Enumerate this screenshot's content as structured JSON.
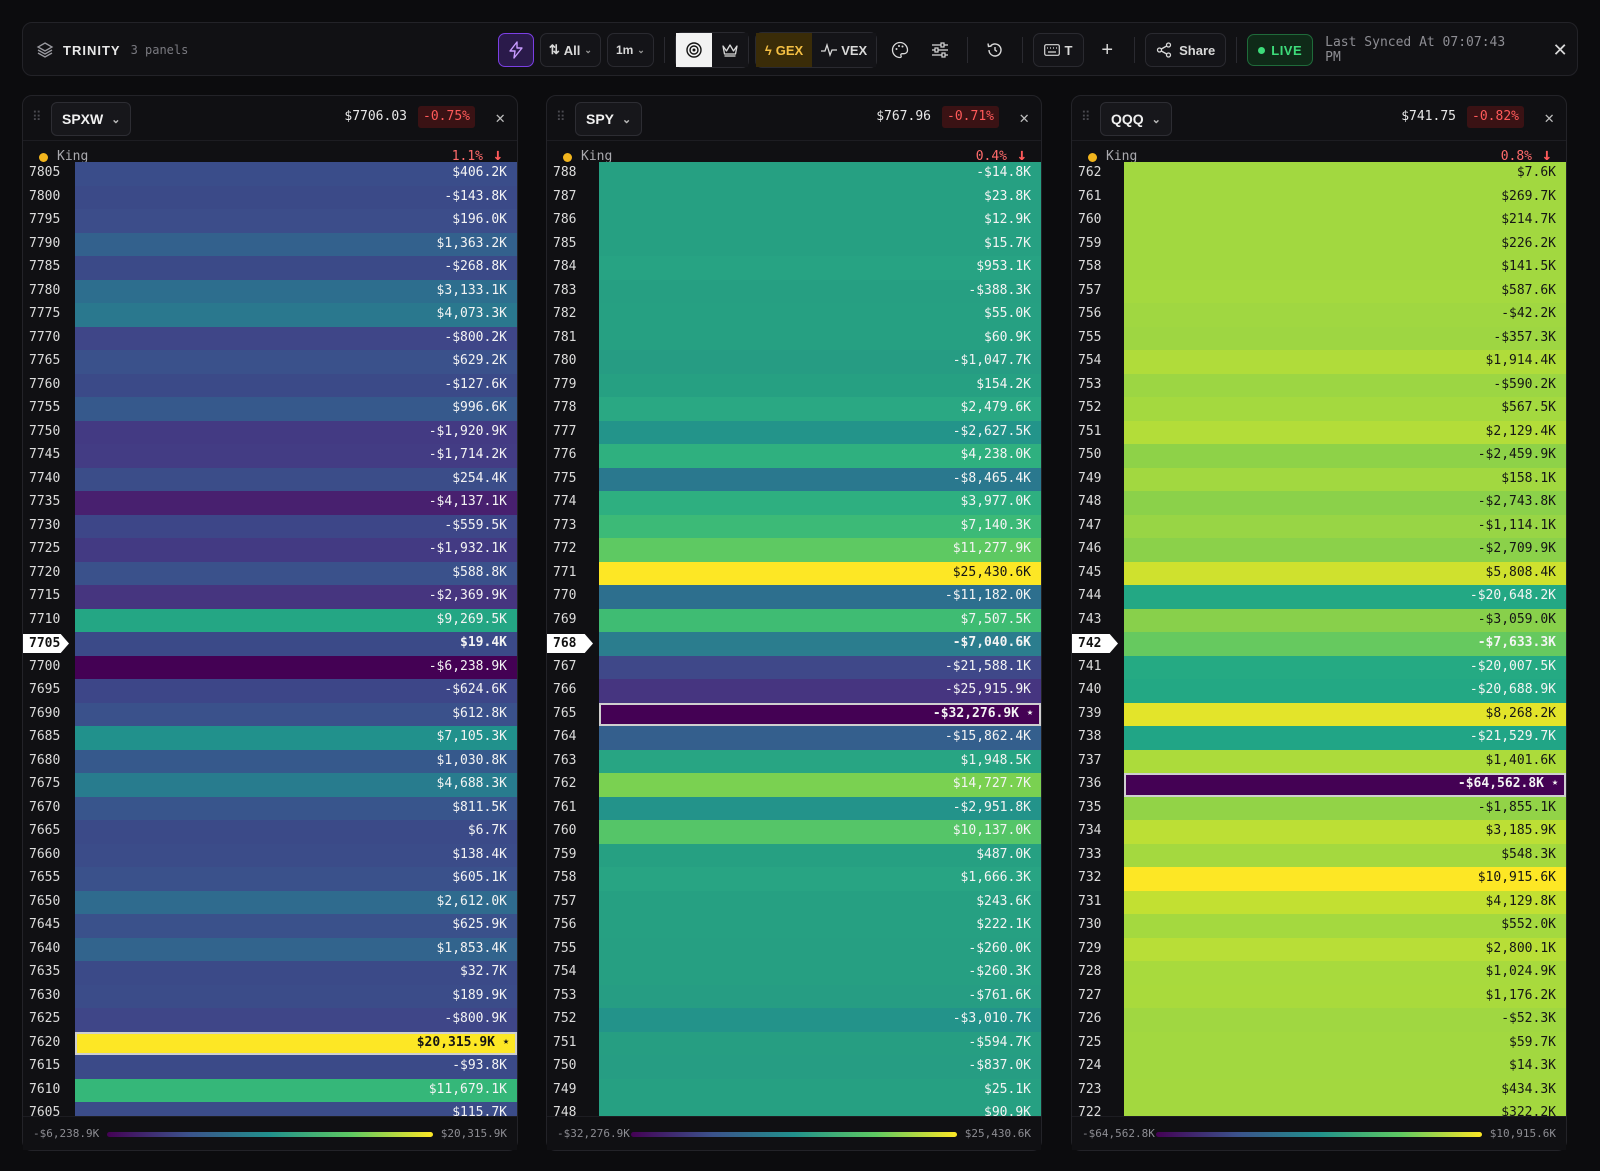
{
  "toolbar": {
    "title": "TRINITY",
    "subtitle": "3 panels",
    "sort_label": "All",
    "interval_label": "1m",
    "gex_label": "GEX",
    "vex_label": "VEX",
    "text_btn_label": "T",
    "share_label": "Share",
    "live_label": "LIVE",
    "synced_text": "Last Synced At 07:07:43 PM"
  },
  "panels": [
    {
      "symbol": "SPXW",
      "price": "$7706.03",
      "change": "-0.75%",
      "king_label": "King",
      "king_pct": "1.1%",
      "legend_min": "-$6,238.9K",
      "legend_max": "$20,315.9K",
      "rows": [
        {
          "strike": "7805",
          "value": "$406.2K",
          "color": "#3a4d8a"
        },
        {
          "strike": "7800",
          "value": "-$143.8K",
          "color": "#3b4a88"
        },
        {
          "strike": "7795",
          "value": "$196.0K",
          "color": "#3c4d8a"
        },
        {
          "strike": "7790",
          "value": "$1,363.2K",
          "color": "#33618d"
        },
        {
          "strike": "7785",
          "value": "-$268.8K",
          "color": "#3b4a88"
        },
        {
          "strike": "7780",
          "value": "$3,133.1K",
          "color": "#2d6e8e"
        },
        {
          "strike": "7775",
          "value": "$4,073.3K",
          "color": "#2a788e"
        },
        {
          "strike": "7770",
          "value": "-$800.2K",
          "color": "#3f4688"
        },
        {
          "strike": "7765",
          "value": "$629.2K",
          "color": "#3a518b"
        },
        {
          "strike": "7760",
          "value": "-$127.6K",
          "color": "#3b4a88"
        },
        {
          "strike": "7755",
          "value": "$996.6K",
          "color": "#36598c"
        },
        {
          "strike": "7750",
          "value": "-$1,920.9K",
          "color": "#433a83"
        },
        {
          "strike": "7745",
          "value": "-$1,714.2K",
          "color": "#433c84"
        },
        {
          "strike": "7740",
          "value": "$254.4K",
          "color": "#3b4d89"
        },
        {
          "strike": "7735",
          "value": "-$4,137.1K",
          "color": "#48206f"
        },
        {
          "strike": "7730",
          "value": "-$559.5K",
          "color": "#3d4688"
        },
        {
          "strike": "7725",
          "value": "-$1,932.1K",
          "color": "#433a83"
        },
        {
          "strike": "7720",
          "value": "$588.8K",
          "color": "#3a518b"
        },
        {
          "strike": "7715",
          "value": "-$2,369.9K",
          "color": "#46357f"
        },
        {
          "strike": "7710",
          "value": "$9,269.5K",
          "color": "#24a684"
        },
        {
          "strike": "7705",
          "value": "$19.4K",
          "color": "#3b4a88",
          "current": true
        },
        {
          "strike": "7700",
          "value": "-$6,238.9K",
          "color": "#440154"
        },
        {
          "strike": "7695",
          "value": "-$624.6K",
          "color": "#3d4688"
        },
        {
          "strike": "7690",
          "value": "$612.8K",
          "color": "#3a518b"
        },
        {
          "strike": "7685",
          "value": "$7,105.3K",
          "color": "#21918c"
        },
        {
          "strike": "7680",
          "value": "$1,030.8K",
          "color": "#36598c"
        },
        {
          "strike": "7675",
          "value": "$4,688.3K",
          "color": "#287c8e"
        },
        {
          "strike": "7670",
          "value": "$811.5K",
          "color": "#38558c"
        },
        {
          "strike": "7665",
          "value": "$6.7K",
          "color": "#3b4a88"
        },
        {
          "strike": "7660",
          "value": "$138.4K",
          "color": "#3b4c89"
        },
        {
          "strike": "7655",
          "value": "$605.1K",
          "color": "#3a518b"
        },
        {
          "strike": "7650",
          "value": "$2,612.0K",
          "color": "#2f6b8e"
        },
        {
          "strike": "7645",
          "value": "$625.9K",
          "color": "#3a518b"
        },
        {
          "strike": "7640",
          "value": "$1,853.4K",
          "color": "#32648d"
        },
        {
          "strike": "7635",
          "value": "$32.7K",
          "color": "#3b4a88"
        },
        {
          "strike": "7630",
          "value": "$189.9K",
          "color": "#3b4c89"
        },
        {
          "strike": "7625",
          "value": "-$800.9K",
          "color": "#3f4688"
        },
        {
          "strike": "7620",
          "value": "$20,315.9K",
          "color": "#fde725",
          "king": true
        },
        {
          "strike": "7615",
          "value": "-$93.8K",
          "color": "#3b4a88"
        },
        {
          "strike": "7610",
          "value": "$11,679.1K",
          "color": "#35b779"
        },
        {
          "strike": "7605",
          "value": "$115.7K",
          "color": "#3b4c89"
        }
      ]
    },
    {
      "symbol": "SPY",
      "price": "$767.96",
      "change": "-0.71%",
      "king_label": "King",
      "king_pct": "0.4%",
      "legend_min": "-$32,276.9K",
      "legend_max": "$25,430.6K",
      "rows": [
        {
          "strike": "788",
          "value": "-$14.8K",
          "color": "#26a082"
        },
        {
          "strike": "787",
          "value": "$23.8K",
          "color": "#26a082"
        },
        {
          "strike": "786",
          "value": "$12.9K",
          "color": "#26a082"
        },
        {
          "strike": "785",
          "value": "$15.7K",
          "color": "#26a082"
        },
        {
          "strike": "784",
          "value": "$953.1K",
          "color": "#27a383"
        },
        {
          "strike": "783",
          "value": "-$388.3K",
          "color": "#269f82"
        },
        {
          "strike": "782",
          "value": "$55.0K",
          "color": "#26a082"
        },
        {
          "strike": "781",
          "value": "$60.9K",
          "color": "#26a082"
        },
        {
          "strike": "780",
          "value": "-$1,047.7K",
          "color": "#269c83"
        },
        {
          "strike": "779",
          "value": "$154.2K",
          "color": "#26a082"
        },
        {
          "strike": "778",
          "value": "$2,479.6K",
          "color": "#2aa883"
        },
        {
          "strike": "777",
          "value": "-$2,627.5K",
          "color": "#23948a"
        },
        {
          "strike": "776",
          "value": "$4,238.0K",
          "color": "#2fb07f"
        },
        {
          "strike": "775",
          "value": "-$8,465.4K",
          "color": "#2a788e"
        },
        {
          "strike": "774",
          "value": "$3,977.0K",
          "color": "#2eaf80"
        },
        {
          "strike": "773",
          "value": "$7,140.3K",
          "color": "#3cba77"
        },
        {
          "strike": "772",
          "value": "$11,277.9K",
          "color": "#5ec962"
        },
        {
          "strike": "771",
          "value": "$25,430.6K",
          "color": "#fde725"
        },
        {
          "strike": "770",
          "value": "-$11,182.0K",
          "color": "#2d6f8e"
        },
        {
          "strike": "769",
          "value": "$7,507.5K",
          "color": "#3fbc73"
        },
        {
          "strike": "768",
          "value": "-$7,040.6K",
          "color": "#2b7d8e",
          "current": true
        },
        {
          "strike": "767",
          "value": "-$21,588.1K",
          "color": "#3f4889"
        },
        {
          "strike": "766",
          "value": "-$25,915.9K",
          "color": "#463580"
        },
        {
          "strike": "765",
          "value": "-$32,276.9K",
          "color": "#440154",
          "king": true
        },
        {
          "strike": "764",
          "value": "-$15,862.4K",
          "color": "#345f8d"
        },
        {
          "strike": "763",
          "value": "$1,948.5K",
          "color": "#28a583"
        },
        {
          "strike": "762",
          "value": "$14,727.7K",
          "color": "#7ad151"
        },
        {
          "strike": "761",
          "value": "-$2,951.8K",
          "color": "#23938a"
        },
        {
          "strike": "760",
          "value": "$10,137.0K",
          "color": "#55c568"
        },
        {
          "strike": "759",
          "value": "$487.0K",
          "color": "#26a082"
        },
        {
          "strike": "758",
          "value": "$1,666.3K",
          "color": "#28a483"
        },
        {
          "strike": "757",
          "value": "$243.6K",
          "color": "#26a082"
        },
        {
          "strike": "756",
          "value": "$222.1K",
          "color": "#26a082"
        },
        {
          "strike": "755",
          "value": "-$260.0K",
          "color": "#269f82"
        },
        {
          "strike": "754",
          "value": "-$260.3K",
          "color": "#269f82"
        },
        {
          "strike": "753",
          "value": "-$761.6K",
          "color": "#269d83"
        },
        {
          "strike": "752",
          "value": "-$3,010.7K",
          "color": "#23938a"
        },
        {
          "strike": "751",
          "value": "-$594.7K",
          "color": "#269e82"
        },
        {
          "strike": "750",
          "value": "-$837.0K",
          "color": "#269d83"
        },
        {
          "strike": "749",
          "value": "$25.1K",
          "color": "#26a082"
        },
        {
          "strike": "748",
          "value": "$90.9K",
          "color": "#26a082"
        }
      ]
    },
    {
      "symbol": "QQQ",
      "price": "$741.75",
      "change": "-0.82%",
      "king_label": "King",
      "king_pct": "0.8%",
      "legend_min": "-$64,562.8K",
      "legend_max": "$10,915.6K",
      "rows": [
        {
          "strike": "762",
          "value": "$7.6K",
          "color": "#a2d840"
        },
        {
          "strike": "761",
          "value": "$269.7K",
          "color": "#a2d840"
        },
        {
          "strike": "760",
          "value": "$214.7K",
          "color": "#a2d840"
        },
        {
          "strike": "759",
          "value": "$226.2K",
          "color": "#a2d840"
        },
        {
          "strike": "758",
          "value": "$141.5K",
          "color": "#a2d840"
        },
        {
          "strike": "757",
          "value": "$587.6K",
          "color": "#a4d93f"
        },
        {
          "strike": "756",
          "value": "-$42.2K",
          "color": "#a0d741"
        },
        {
          "strike": "755",
          "value": "-$357.3K",
          "color": "#9ed642"
        },
        {
          "strike": "754",
          "value": "$1,914.4K",
          "color": "#b0dc3a"
        },
        {
          "strike": "753",
          "value": "-$590.2K",
          "color": "#9cd643"
        },
        {
          "strike": "752",
          "value": "$567.5K",
          "color": "#a4d93f"
        },
        {
          "strike": "751",
          "value": "$2,129.4K",
          "color": "#b3dd39"
        },
        {
          "strike": "750",
          "value": "-$2,459.9K",
          "color": "#8ed248"
        },
        {
          "strike": "749",
          "value": "$158.1K",
          "color": "#a2d840"
        },
        {
          "strike": "748",
          "value": "-$2,743.8K",
          "color": "#8bd14a"
        },
        {
          "strike": "747",
          "value": "-$1,114.1K",
          "color": "#98d545"
        },
        {
          "strike": "746",
          "value": "-$2,709.9K",
          "color": "#8bd14a"
        },
        {
          "strike": "745",
          "value": "$5,808.4K",
          "color": "#cfe12e"
        },
        {
          "strike": "744",
          "value": "-$20,648.2K",
          "color": "#23a884"
        },
        {
          "strike": "743",
          "value": "-$3,059.0K",
          "color": "#88d04b"
        },
        {
          "strike": "742",
          "value": "-$7,633.3K",
          "color": "#66c95f",
          "current": true
        },
        {
          "strike": "741",
          "value": "-$20,007.5K",
          "color": "#25aa83"
        },
        {
          "strike": "740",
          "value": "-$20,688.9K",
          "color": "#23a884"
        },
        {
          "strike": "739",
          "value": "$8,268.2K",
          "color": "#e3e42a"
        },
        {
          "strike": "738",
          "value": "-$21,529.7K",
          "color": "#21a586"
        },
        {
          "strike": "737",
          "value": "$1,401.6K",
          "color": "#acdb3b"
        },
        {
          "strike": "736",
          "value": "-$64,562.8K",
          "color": "#440154",
          "king": true
        },
        {
          "strike": "735",
          "value": "-$1,855.1K",
          "color": "#92d347"
        },
        {
          "strike": "734",
          "value": "$3,185.9K",
          "color": "#bcdf35"
        },
        {
          "strike": "733",
          "value": "$548.3K",
          "color": "#a4d93f"
        },
        {
          "strike": "732",
          "value": "$10,915.6K",
          "color": "#fde725"
        },
        {
          "strike": "731",
          "value": "$4,129.8K",
          "color": "#c2e032"
        },
        {
          "strike": "730",
          "value": "$552.0K",
          "color": "#a4d93f"
        },
        {
          "strike": "729",
          "value": "$2,800.1K",
          "color": "#b8de37"
        },
        {
          "strike": "728",
          "value": "$1,024.9K",
          "color": "#a8da3d"
        },
        {
          "strike": "727",
          "value": "$1,176.2K",
          "color": "#a9da3c"
        },
        {
          "strike": "726",
          "value": "-$52.3K",
          "color": "#a0d741"
        },
        {
          "strike": "725",
          "value": "$59.7K",
          "color": "#a2d840"
        },
        {
          "strike": "724",
          "value": "$14.3K",
          "color": "#a2d840"
        },
        {
          "strike": "723",
          "value": "$434.3K",
          "color": "#a3d83f"
        },
        {
          "strike": "722",
          "value": "$322.2K",
          "color": "#a3d83f"
        }
      ]
    }
  ]
}
